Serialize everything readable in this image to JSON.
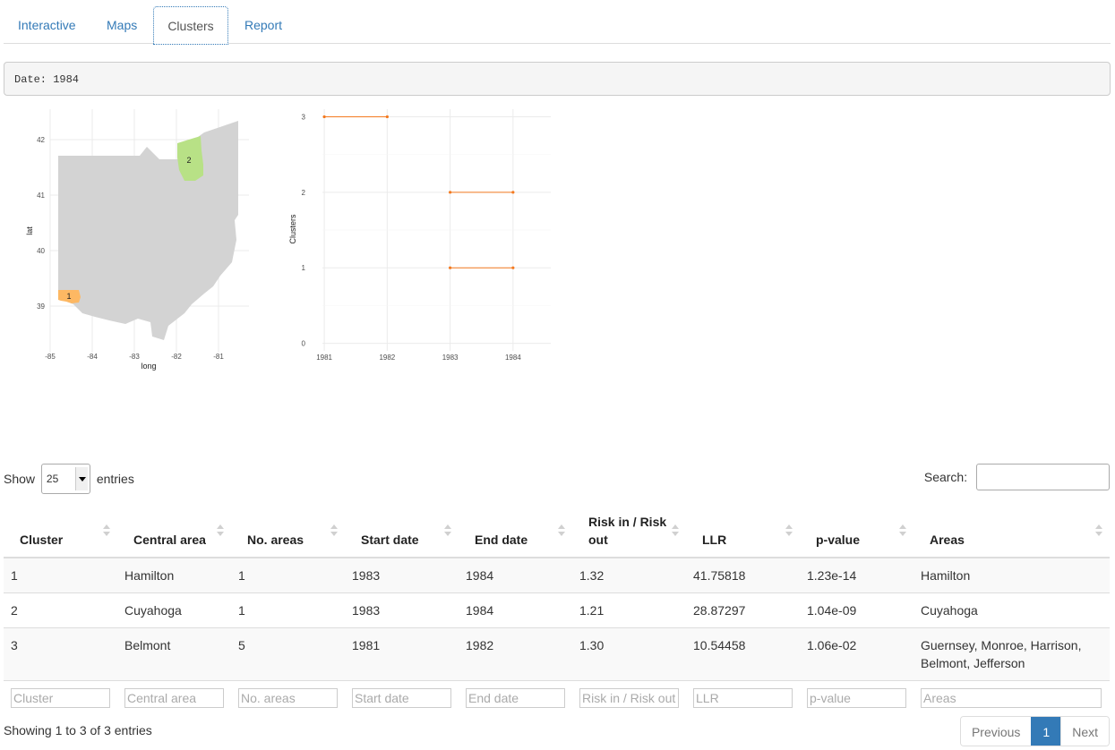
{
  "tabs": [
    {
      "label": "Interactive"
    },
    {
      "label": "Maps"
    },
    {
      "label": "Clusters"
    },
    {
      "label": "Report"
    }
  ],
  "active_tab": "Clusters",
  "date_text": "Date: 1984",
  "map": {
    "xlabel": "long",
    "ylabel": "lat",
    "xticks": [
      "-85",
      "-84",
      "-83",
      "-82",
      "-81"
    ],
    "yticks": [
      "42",
      "41",
      "40",
      "39"
    ],
    "cluster_labels": [
      "2",
      "1"
    ],
    "colors": {
      "state": "#d3d3d3",
      "cluster1": "#fdb863",
      "cluster2": "#b8e186"
    }
  },
  "chart_data": {
    "type": "line",
    "title": "",
    "xlabel": "",
    "ylabel": "Clusters",
    "x_ticks": [
      "1981",
      "1982",
      "1983",
      "1984"
    ],
    "y_ticks": [
      "0",
      "1",
      "2",
      "3"
    ],
    "xlim": [
      1980.97,
      1984.6
    ],
    "ylim": [
      -0.1,
      3.1
    ],
    "grid": true,
    "color": "#f47a20",
    "segments": [
      {
        "cluster": 3,
        "start": 1981,
        "end": 1982
      },
      {
        "cluster": 2,
        "start": 1983,
        "end": 1984
      },
      {
        "cluster": 1,
        "start": 1983,
        "end": 1984
      }
    ]
  },
  "table": {
    "show_label": "Show",
    "entries_label": "entries",
    "length_value": "25",
    "search_label": "Search:",
    "columns": [
      "Cluster",
      "Central area",
      "No. areas",
      "Start date",
      "End date",
      "Risk in / Risk out",
      "LLR",
      "p-value",
      "Areas"
    ],
    "rows": [
      [
        "1",
        "Hamilton",
        "1",
        "1983",
        "1984",
        "1.32",
        "41.75818",
        "1.23e-14",
        "Hamilton"
      ],
      [
        "2",
        "Cuyahoga",
        "1",
        "1983",
        "1984",
        "1.21",
        "28.87297",
        "1.04e-09",
        "Cuyahoga"
      ],
      [
        "3",
        "Belmont",
        "5",
        "1981",
        "1982",
        "1.30",
        "10.54458",
        "1.06e-02",
        "Guernsey, Monroe, Harrison, Belmont, Jefferson"
      ]
    ],
    "filter_placeholders": [
      "Cluster",
      "Central area",
      "No. areas",
      "Start date",
      "End date",
      "Risk in / Risk out",
      "LLR",
      "p-value",
      "Areas"
    ],
    "info": "Showing 1 to 3 of 3 entries",
    "pagination": {
      "previous": "Previous",
      "current": "1",
      "next": "Next"
    }
  }
}
